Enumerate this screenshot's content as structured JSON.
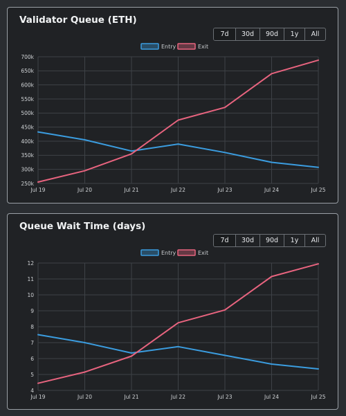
{
  "range_options": [
    "7d",
    "30d",
    "90d",
    "1y",
    "All"
  ],
  "colors": {
    "entry": "#3b9de0",
    "exit": "#e8647f",
    "grid": "#3e4247",
    "panel_bg": "#202225",
    "page_bg": "#2a2d31"
  },
  "charts": [
    {
      "title": "Validator Queue (ETH)",
      "active_range": "7d",
      "legend": [
        "Entry",
        "Exit"
      ],
      "x_labels": [
        "Jul 19",
        "Jul 20",
        "Jul 21",
        "Jul 22",
        "Jul 23",
        "Jul 24",
        "Jul 25"
      ],
      "y_labels": [
        "700k",
        "650k",
        "600k",
        "550k",
        "500k",
        "450k",
        "400k",
        "350k",
        "300k",
        "250k"
      ]
    },
    {
      "title": "Queue Wait Time (days)",
      "active_range": "7d",
      "legend": [
        "Entry",
        "Exit"
      ],
      "x_labels": [
        "Jul 19",
        "Jul 20",
        "Jul 21",
        "Jul 22",
        "Jul 23",
        "Jul 24",
        "Jul 25"
      ],
      "y_labels": [
        "12",
        "11",
        "10",
        "9",
        "8",
        "7",
        "6",
        "5",
        "4"
      ]
    }
  ],
  "chart_data": [
    {
      "type": "line",
      "title": "Validator Queue (ETH)",
      "x": [
        "Jul 19",
        "Jul 20",
        "Jul 21",
        "Jul 22",
        "Jul 23",
        "Jul 24",
        "Jul 25"
      ],
      "ylim": [
        250000,
        700000
      ],
      "grid": true,
      "legend_position": "top",
      "series": [
        {
          "name": "Entry",
          "color": "#3b9de0",
          "values": [
            433000,
            405000,
            365000,
            390000,
            360000,
            325000,
            307000
          ]
        },
        {
          "name": "Exit",
          "color": "#e8647f",
          "values": [
            255000,
            295000,
            355000,
            475000,
            520000,
            640000,
            688000
          ]
        }
      ]
    },
    {
      "type": "line",
      "title": "Queue Wait Time (days)",
      "x": [
        "Jul 19",
        "Jul 20",
        "Jul 21",
        "Jul 22",
        "Jul 23",
        "Jul 24",
        "Jul 25"
      ],
      "ylim": [
        4,
        12
      ],
      "grid": true,
      "legend_position": "top",
      "series": [
        {
          "name": "Entry",
          "color": "#3b9de0",
          "values": [
            7.5,
            7.0,
            6.35,
            6.75,
            6.2,
            5.65,
            5.35
          ]
        },
        {
          "name": "Exit",
          "color": "#e8647f",
          "values": [
            4.45,
            5.15,
            6.15,
            8.25,
            9.05,
            11.15,
            11.95
          ]
        }
      ]
    }
  ]
}
